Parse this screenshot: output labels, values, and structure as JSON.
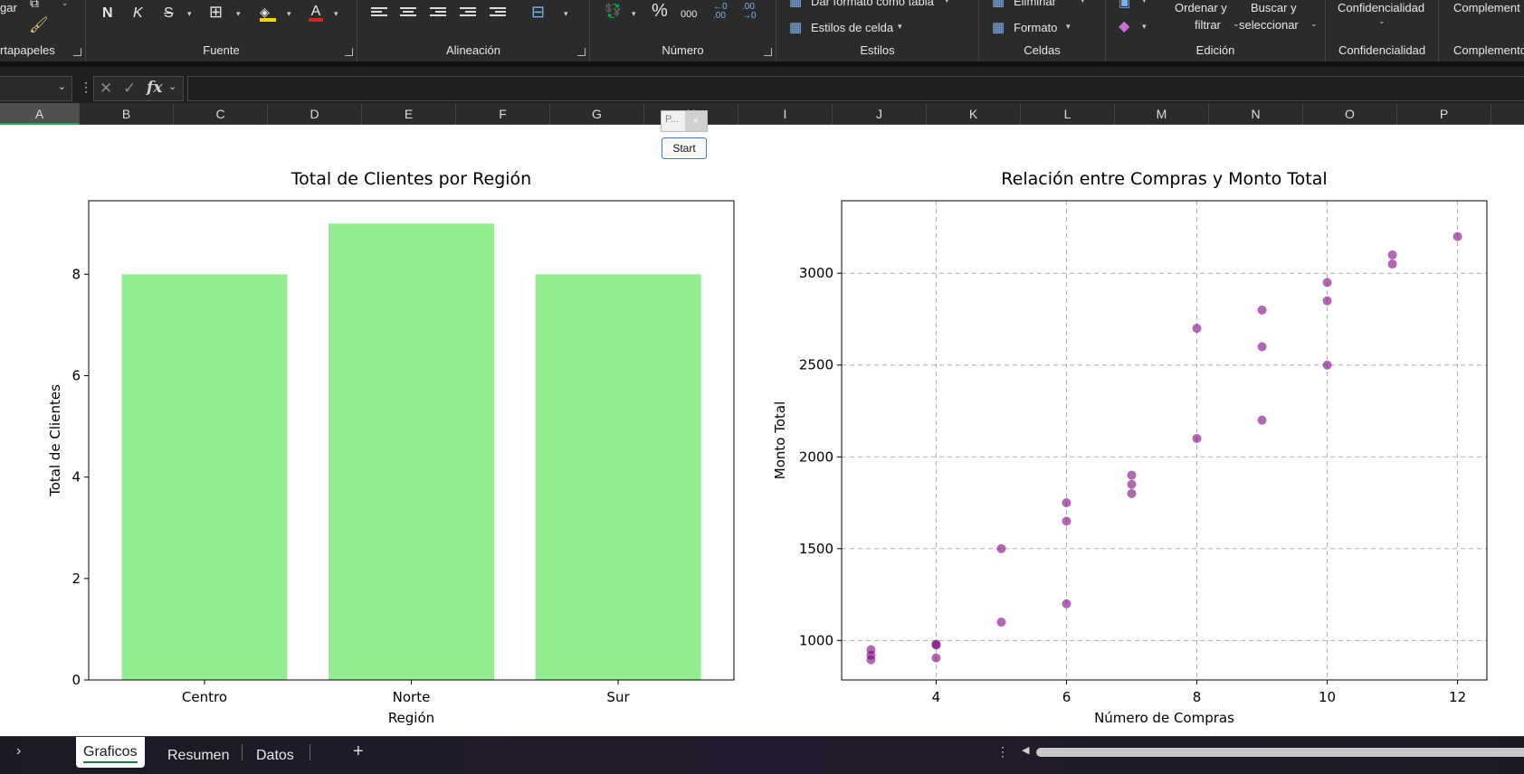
{
  "ribbon": {
    "groups": {
      "clipboard": "rtapapeles",
      "font": "Fuente",
      "alignment": "Alineación",
      "number": "Número",
      "styles": "Estilos",
      "cells": "Celdas",
      "editing": "Edición",
      "sensitivity": "Confidencialidad",
      "addins": "Complementos"
    },
    "paste_label": "gar",
    "font_buttons": {
      "bold": "N",
      "italic": "K",
      "strike": "S",
      "font_color_letter": "A"
    },
    "number_buttons": {
      "percent": "%",
      "thousands": "000",
      "inc_decimal": "←0\n.00",
      "dec_decimal": ".00\n→0"
    },
    "format_as_table": "Dar formato como tabla",
    "cell_styles": "Estilos de celda",
    "delete": "Eliminar",
    "format": "Formato",
    "sort_filter_1": "Ordenar y",
    "sort_filter_2": "filtrar",
    "find_select_1": "Buscar y",
    "find_select_2": "seleccionar",
    "sensitivity_btn": "Confidencialidad",
    "addins_btn": "Complement"
  },
  "formula_bar": {
    "fx": "fx",
    "cancel": "✕",
    "enter": "✓",
    "value": ""
  },
  "columns": [
    "A",
    "B",
    "C",
    "D",
    "E",
    "F",
    "G",
    "H",
    "I",
    "J",
    "K",
    "L",
    "M",
    "N",
    "O",
    "P"
  ],
  "selected_column": "A",
  "mini_dialog": {
    "title": "P...",
    "close": "×",
    "button": "Start"
  },
  "sheet_tabs": [
    "Graficos",
    "Resumen",
    "Datos"
  ],
  "active_tab": "Graficos",
  "add_sheet": "+",
  "colors": {
    "bar": "#90ee90",
    "scatter": "#800080",
    "ribbon_bg": "#2b2b2b",
    "accent_green": "#1f7a46"
  },
  "chart_data": [
    {
      "type": "bar",
      "title": "Total de Clientes por Región",
      "xlabel": "Región",
      "ylabel": "Total de Clientes",
      "categories": [
        "Centro",
        "Norte",
        "Sur"
      ],
      "values": [
        8,
        9,
        8
      ],
      "ylim": [
        0,
        9.45
      ],
      "yticks": [
        0,
        2,
        4,
        6,
        8
      ],
      "grid": false
    },
    {
      "type": "scatter",
      "title": "Relación entre Compras y Monto Total",
      "xlabel": "Número de Compras",
      "ylabel": "Monto Total",
      "xlim": [
        2.55,
        12.45
      ],
      "ylim": [
        785,
        3395
      ],
      "xticks": [
        4,
        6,
        8,
        10,
        12
      ],
      "yticks": [
        1000,
        1500,
        2000,
        2500,
        3000
      ],
      "grid": true,
      "points": [
        {
          "x": 3,
          "y": 950
        },
        {
          "x": 3,
          "y": 920
        },
        {
          "x": 3,
          "y": 895
        },
        {
          "x": 4,
          "y": 980
        },
        {
          "x": 4,
          "y": 975
        },
        {
          "x": 4,
          "y": 905
        },
        {
          "x": 5,
          "y": 1500
        },
        {
          "x": 5,
          "y": 1100
        },
        {
          "x": 6,
          "y": 1750
        },
        {
          "x": 6,
          "y": 1650
        },
        {
          "x": 6,
          "y": 1200
        },
        {
          "x": 7,
          "y": 1900
        },
        {
          "x": 7,
          "y": 1850
        },
        {
          "x": 7,
          "y": 1800
        },
        {
          "x": 8,
          "y": 2700
        },
        {
          "x": 8,
          "y": 2100
        },
        {
          "x": 9,
          "y": 2800
        },
        {
          "x": 9,
          "y": 2600
        },
        {
          "x": 9,
          "y": 2200
        },
        {
          "x": 10,
          "y": 2950
        },
        {
          "x": 10,
          "y": 2850
        },
        {
          "x": 10,
          "y": 2500
        },
        {
          "x": 11,
          "y": 3100
        },
        {
          "x": 11,
          "y": 3050
        },
        {
          "x": 12,
          "y": 3200
        }
      ]
    }
  ]
}
